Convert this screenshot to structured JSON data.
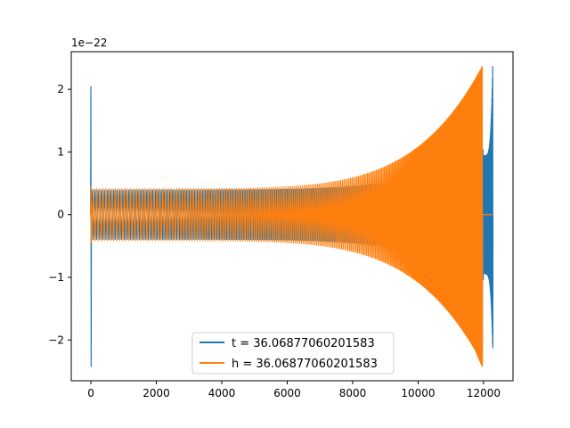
{
  "chart_data": {
    "type": "line",
    "scale_label": "1e−22",
    "xlim": [
      -600,
      12900
    ],
    "ylim": [
      -2.65,
      2.6
    ],
    "x_ticks": [
      {
        "value": 0,
        "label": "0"
      },
      {
        "value": 2000,
        "label": "2000"
      },
      {
        "value": 4000,
        "label": "4000"
      },
      {
        "value": 6000,
        "label": "6000"
      },
      {
        "value": 8000,
        "label": "8000"
      },
      {
        "value": 10000,
        "label": "10000"
      },
      {
        "value": 12000,
        "label": "12000"
      }
    ],
    "y_ticks": [
      {
        "value": -2,
        "label": "−2"
      },
      {
        "value": -1,
        "label": "−1"
      },
      {
        "value": 0,
        "label": "0"
      },
      {
        "value": 1,
        "label": "1"
      },
      {
        "value": 2,
        "label": "2"
      }
    ],
    "legend_position": "lower-center",
    "series": [
      {
        "name": "t = 36.06877060201583",
        "color": "#1f77b4",
        "glitch_x": 0,
        "glitch_amp": [
          2.05,
          -2.43
        ],
        "osc_start": 0,
        "osc_end": 12000,
        "chirp_amp_start": 0.4,
        "chirp_amp_end": 1.05,
        "tail_start": 12000,
        "tail_end": 12280,
        "tail_amp_start": 0.95,
        "tail_amp_end": 2.37,
        "tail_min": -2.13,
        "end_x": 12280
      },
      {
        "name": "h = 36.06877060201583",
        "color": "#ff7f0e",
        "glitch_x": 0,
        "glitch_amp": [
          0.45,
          -0.45
        ],
        "osc_start": 0,
        "osc_end": 11960,
        "chirp_amp_start": 0.42,
        "chirp_amp_end": 2.37,
        "chirp_min_end": -2.43,
        "flat_after": 11960,
        "end_x": 12280
      }
    ]
  }
}
